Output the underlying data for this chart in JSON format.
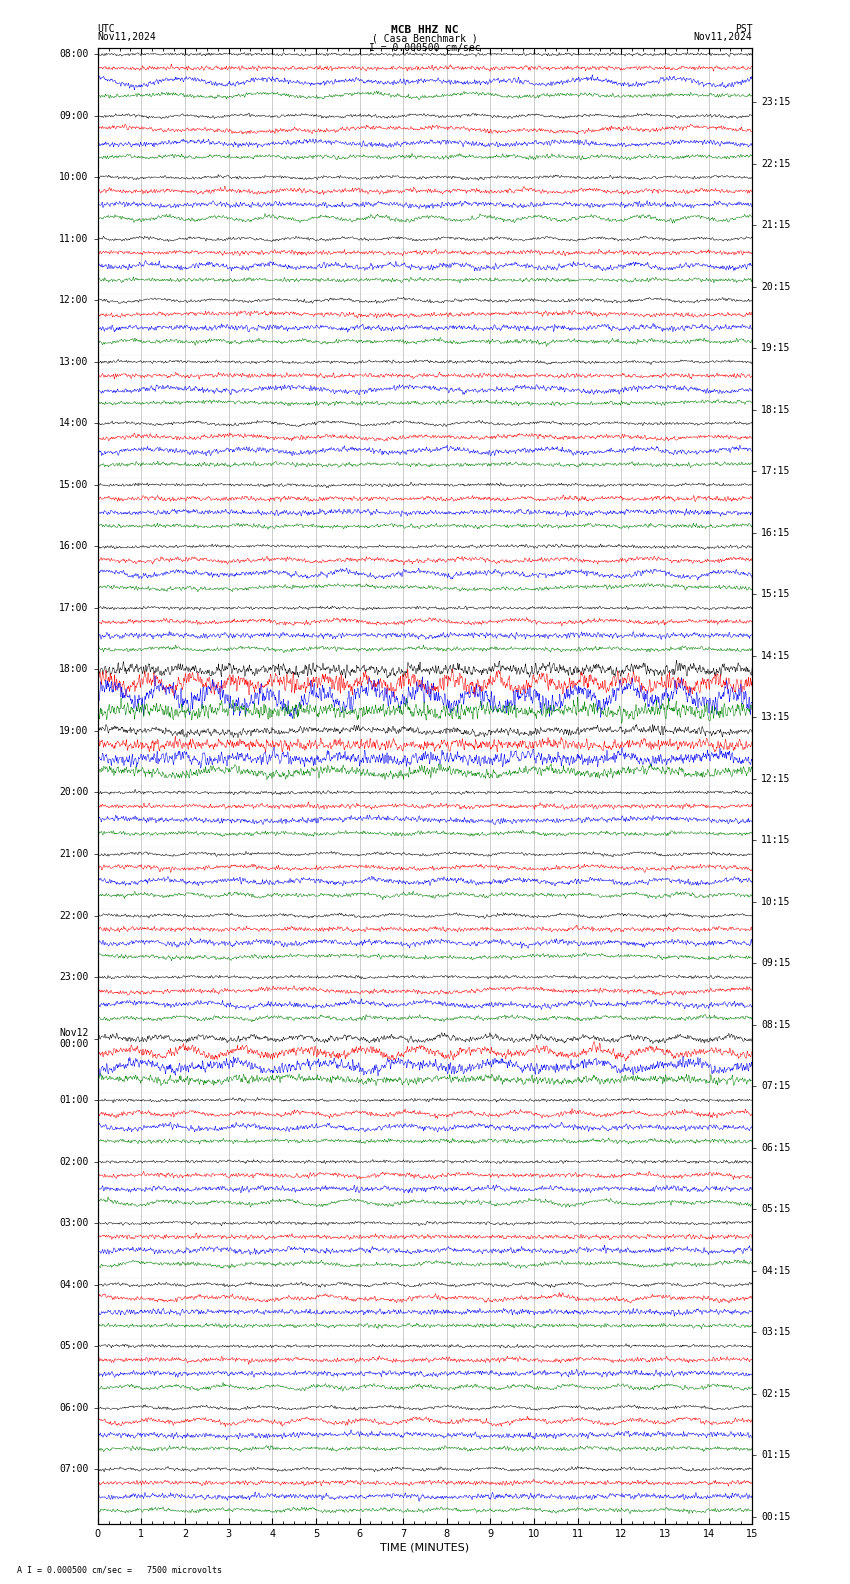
{
  "title_line1": "MCB HHZ NC",
  "title_line2": "( Casa Benchmark )",
  "scale_text": "I = 0.000500 cm/sec",
  "bottom_text": "A I = 0.000500 cm/sec =   7500 microvolts",
  "utc_label": "UTC",
  "utc_date": "Nov11,2024",
  "pst_label": "PST",
  "pst_date": "Nov11,2024",
  "xlabel": "TIME (MINUTES)",
  "bg_color": "#ffffff",
  "trace_colors": [
    "black",
    "red",
    "blue",
    "green"
  ],
  "left_times": [
    "08:00",
    "09:00",
    "10:00",
    "11:00",
    "12:00",
    "13:00",
    "14:00",
    "15:00",
    "16:00",
    "17:00",
    "18:00",
    "19:00",
    "20:00",
    "21:00",
    "22:00",
    "23:00",
    "Nov12\n00:00",
    "01:00",
    "02:00",
    "03:00",
    "04:00",
    "05:00",
    "06:00",
    "07:00"
  ],
  "right_times": [
    "00:15",
    "01:15",
    "02:15",
    "03:15",
    "04:15",
    "05:15",
    "06:15",
    "07:15",
    "08:15",
    "09:15",
    "10:15",
    "11:15",
    "12:15",
    "13:15",
    "14:15",
    "15:15",
    "16:15",
    "17:15",
    "18:15",
    "19:15",
    "20:15",
    "21:15",
    "22:15",
    "23:15"
  ],
  "n_rows": 24,
  "traces_per_row": 4,
  "x_min": 0,
  "x_max": 15,
  "x_ticks": [
    0,
    1,
    2,
    3,
    4,
    5,
    6,
    7,
    8,
    9,
    10,
    11,
    12,
    13,
    14,
    15
  ],
  "font_size": 7,
  "title_font_size": 8,
  "seed": 42,
  "noise_amps": [
    0.3,
    0.45,
    0.55,
    0.4
  ],
  "event_row_10_scale": 4.0,
  "event_row_11_scale": 2.5,
  "event_row_16_scale": 2.0
}
